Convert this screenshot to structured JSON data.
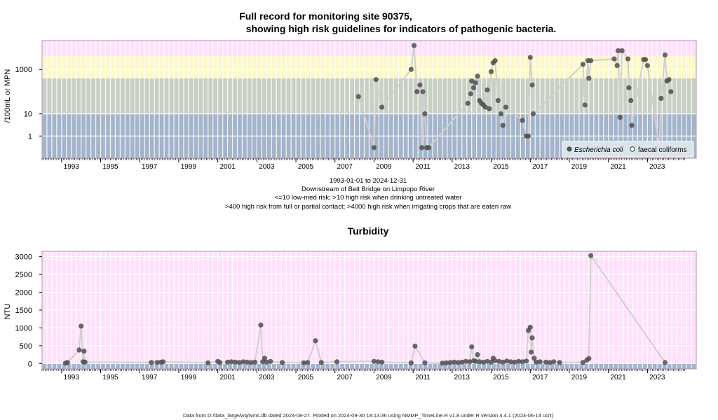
{
  "chart1": {
    "title_line1": "Full record for monitoring site 90375,",
    "title_line2": "showing high risk guidelines for indicators of pathogenic bacteria.",
    "ylabel": "/100mL or MPN",
    "subtitle_lines": [
      "1993-01-01 to 2024-12-31",
      "Downstream of Beit Bridge on Limpopo River",
      "<=10 low-med risk; >10 high risk when drinking untreated water",
      ">400 high risk from full or partial contact; >4000 high risk when irrigating crops that are eaten raw"
    ],
    "legend": {
      "ecoli": "Escherichia coli",
      "faecal": "faecal coliforms"
    }
  },
  "chart2": {
    "title": "Turbidity",
    "ylabel": "NTU"
  },
  "footer": "Data from D:/data_large/wq/wms.db dated 2024-08-27. Plotted on 2024-09-30 18:13:36 using NMMP_TimeLine.R v1.8 under R version 4.4.1 (2024-06-14 ucrt)",
  "colors": {
    "band_low": "#a3b4cb",
    "band_mid": "#c8d0c3",
    "band_high": "#fdf8c9",
    "band_top": "#ffe1fb",
    "turb_base": "#a3b4cb",
    "points": "#505050",
    "lines": "#d0d0d0"
  },
  "chart_data": [
    {
      "type": "scatter",
      "title": "Full record for monitoring site 90375, showing high risk guidelines for indicators of pathogenic bacteria.",
      "ylabel": "/100mL or MPN",
      "yscale": "log",
      "yticks": [
        1,
        10,
        1000
      ],
      "xrange": [
        1992.0,
        2025.5
      ],
      "ylim": [
        0.1,
        20000
      ],
      "xticks": [
        1993,
        1995,
        1997,
        1999,
        2001,
        2003,
        2005,
        2007,
        2009,
        2011,
        2013,
        2015,
        2017,
        2019,
        2021,
        2023
      ],
      "bands": [
        10,
        400,
        4000
      ],
      "legend_position": "bottom-right",
      "series": [
        {
          "name": "Escherichia coli",
          "points": [
            [
              2008.2,
              60
            ],
            [
              2009.0,
              0.3
            ],
            [
              2009.1,
              350
            ],
            [
              2009.4,
              20
            ],
            [
              2010.9,
              1000
            ],
            [
              2011.05,
              12000
            ],
            [
              2011.2,
              100
            ],
            [
              2011.35,
              200
            ],
            [
              2011.45,
              0.3
            ],
            [
              2011.5,
              100
            ],
            [
              2011.6,
              10
            ],
            [
              2011.7,
              0.3
            ],
            [
              2011.8,
              0.3
            ],
            [
              2013.8,
              30
            ],
            [
              2013.95,
              80
            ],
            [
              2014.0,
              300
            ],
            [
              2014.1,
              150
            ],
            [
              2014.2,
              250
            ],
            [
              2014.3,
              500
            ],
            [
              2014.4,
              40
            ],
            [
              2014.5,
              30
            ],
            [
              2014.6,
              25
            ],
            [
              2014.7,
              20
            ],
            [
              2014.8,
              120
            ],
            [
              2014.9,
              17
            ],
            [
              2015.0,
              800
            ],
            [
              2015.1,
              2000
            ],
            [
              2015.2,
              2500
            ],
            [
              2015.35,
              40
            ],
            [
              2015.5,
              10
            ],
            [
              2015.6,
              3
            ],
            [
              2015.75,
              20
            ],
            [
              2016.6,
              5
            ],
            [
              2016.8,
              1
            ],
            [
              2016.9,
              1
            ],
            [
              2017.0,
              3500
            ],
            [
              2017.1,
              200
            ],
            [
              2017.15,
              10
            ],
            [
              2019.7,
              1700
            ],
            [
              2019.8,
              25
            ],
            [
              2019.95,
              2500
            ],
            [
              2020.0,
              400
            ],
            [
              2020.1,
              2500
            ],
            [
              2021.3,
              3000
            ],
            [
              2021.45,
              1500
            ],
            [
              2021.5,
              7000
            ],
            [
              2021.6,
              7
            ],
            [
              2021.7,
              7000
            ],
            [
              2022.0,
              3000
            ],
            [
              2022.05,
              150
            ],
            [
              2022.15,
              40
            ],
            [
              2022.2,
              3
            ],
            [
              2022.8,
              2800
            ],
            [
              2022.9,
              2800
            ],
            [
              2023.0,
              1500
            ],
            [
              2023.6,
              0.3
            ],
            [
              2023.7,
              50
            ],
            [
              2023.9,
              4500
            ],
            [
              2024.0,
              300
            ],
            [
              2024.1,
              350
            ],
            [
              2024.2,
              100
            ]
          ]
        },
        {
          "name": "faecal coliforms",
          "points": []
        }
      ]
    },
    {
      "type": "scatter",
      "title": "Turbidity",
      "ylabel": "NTU",
      "xrange": [
        1992.0,
        2025.5
      ],
      "ylim": [
        -150,
        3150
      ],
      "yticks": [
        0,
        500,
        1000,
        1500,
        2000,
        2500,
        3000
      ],
      "xticks": [
        1993,
        1995,
        1997,
        1999,
        2001,
        2003,
        2005,
        2007,
        2009,
        2011,
        2013,
        2015,
        2017,
        2019,
        2021,
        2023
      ],
      "series": [
        {
          "name": "Turbidity",
          "points": [
            [
              1993.2,
              10
            ],
            [
              1993.3,
              30
            ],
            [
              1993.9,
              380
            ],
            [
              1994.0,
              1050
            ],
            [
              1994.1,
              50
            ],
            [
              1994.15,
              350
            ],
            [
              1994.2,
              40
            ],
            [
              1997.6,
              30
            ],
            [
              1997.9,
              30
            ],
            [
              1998.1,
              40
            ],
            [
              1998.2,
              50
            ],
            [
              2000.5,
              20
            ],
            [
              2001.0,
              60
            ],
            [
              2001.1,
              30
            ],
            [
              2001.5,
              40
            ],
            [
              2001.7,
              50
            ],
            [
              2001.9,
              40
            ],
            [
              2002.1,
              30
            ],
            [
              2002.3,
              50
            ],
            [
              2002.5,
              40
            ],
            [
              2002.7,
              30
            ],
            [
              2002.9,
              40
            ],
            [
              2003.2,
              1080
            ],
            [
              2003.3,
              50
            ],
            [
              2003.4,
              150
            ],
            [
              2003.5,
              40
            ],
            [
              2003.7,
              60
            ],
            [
              2004.3,
              30
            ],
            [
              2005.4,
              20
            ],
            [
              2005.6,
              30
            ],
            [
              2006.0,
              640
            ],
            [
              2006.3,
              30
            ],
            [
              2007.1,
              50
            ],
            [
              2009.0,
              60
            ],
            [
              2009.2,
              50
            ],
            [
              2009.4,
              40
            ],
            [
              2010.9,
              20
            ],
            [
              2011.1,
              490
            ],
            [
              2011.6,
              20
            ],
            [
              2012.5,
              10
            ],
            [
              2012.7,
              20
            ],
            [
              2012.9,
              30
            ],
            [
              2013.1,
              40
            ],
            [
              2013.3,
              30
            ],
            [
              2013.5,
              40
            ],
            [
              2013.7,
              60
            ],
            [
              2013.9,
              50
            ],
            [
              2014.0,
              470
            ],
            [
              2014.1,
              80
            ],
            [
              2014.2,
              60
            ],
            [
              2014.3,
              250
            ],
            [
              2014.4,
              50
            ],
            [
              2014.6,
              40
            ],
            [
              2014.8,
              60
            ],
            [
              2015.0,
              40
            ],
            [
              2015.1,
              150
            ],
            [
              2015.2,
              80
            ],
            [
              2015.4,
              60
            ],
            [
              2015.6,
              40
            ],
            [
              2015.8,
              70
            ],
            [
              2016.0,
              50
            ],
            [
              2016.2,
              40
            ],
            [
              2016.4,
              60
            ],
            [
              2016.6,
              50
            ],
            [
              2016.8,
              70
            ],
            [
              2016.9,
              930
            ],
            [
              2017.0,
              1020
            ],
            [
              2017.05,
              320
            ],
            [
              2017.1,
              720
            ],
            [
              2017.2,
              150
            ],
            [
              2017.3,
              40
            ],
            [
              2017.5,
              50
            ],
            [
              2017.8,
              40
            ],
            [
              2018.0,
              30
            ],
            [
              2018.2,
              50
            ],
            [
              2018.5,
              30
            ],
            [
              2019.7,
              30
            ],
            [
              2019.9,
              100
            ],
            [
              2020.0,
              140
            ],
            [
              2020.1,
              3030
            ],
            [
              2023.9,
              30
            ]
          ]
        }
      ]
    }
  ]
}
